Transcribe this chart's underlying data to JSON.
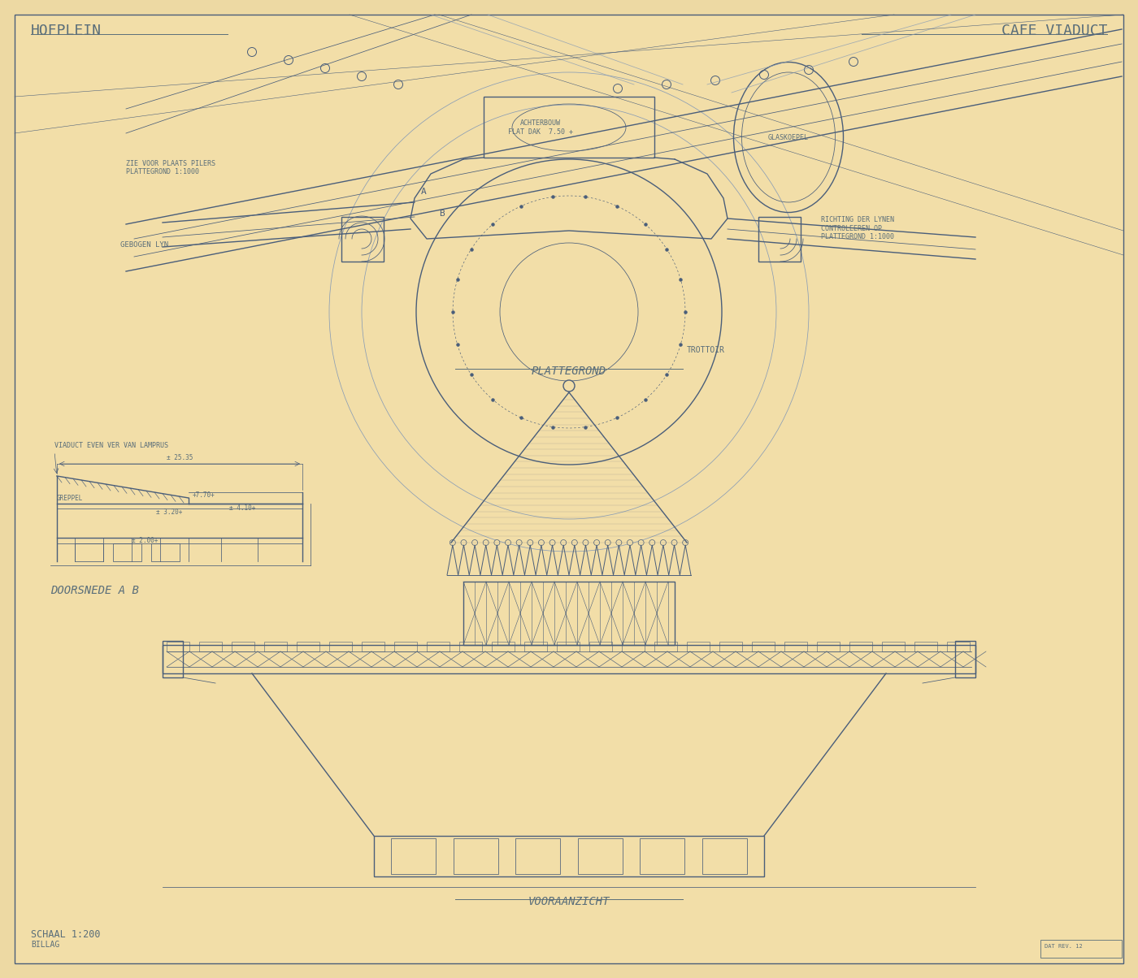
{
  "bg_color": "#edd9a3",
  "paper_color": "#f2dea8",
  "line_color": "#4a5e7a",
  "light_color": "#8a9db5",
  "text_color": "#5a6e7a",
  "title_left": "HOFPLEIN",
  "title_right": "CAFE VIADUCT",
  "label_plattegrond": "PLATTEGROND",
  "label_doorsnede": "DOORSNEDE A B",
  "label_vooraanzicht": "VOORAANZICHT",
  "label_schaal": "SCHAAL 1:200",
  "label_billag": "BILLAG",
  "label_trottoir": "TROTTOIR",
  "label_achterbouw": "ACHTERBOUW\nFLAT DAK  7.50 +",
  "label_glaskoepel": "GLASKOEPEL",
  "label_gebogen_lijn": "GEBOGEN LYN",
  "label_zie_voor": "ZIE VOOR PLAATS PILERS\nPLATTEGROND 1:1000",
  "label_richting": "RICHTING DER LYNEN\nCONTROLEEREN OP\nPLATTEGROND 1:1000",
  "label_viaduct_sec": "VIADUCT EVEN VER VAN LAMPRUS",
  "label_greppel": "GREPPEL",
  "sec_dim_width": "± 25.35",
  "sec_dim_h1": "+7.70+",
  "sec_dim_h2": "± 3.20+",
  "sec_dim_h3": "± 4.10+",
  "sec_dim_h4": "± 2.00+",
  "label_A": "A",
  "label_B": "B"
}
